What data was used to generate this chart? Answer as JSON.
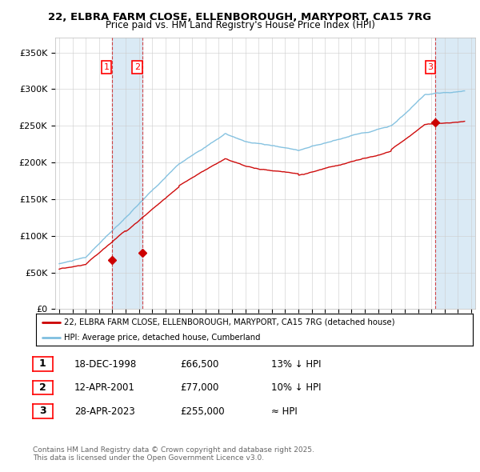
{
  "title_line1": "22, ELBRA FARM CLOSE, ELLENBOROUGH, MARYPORT, CA15 7RG",
  "title_line2": "Price paid vs. HM Land Registry's House Price Index (HPI)",
  "ylim": [
    0,
    370000
  ],
  "yticks": [
    0,
    50000,
    100000,
    150000,
    200000,
    250000,
    300000,
    350000
  ],
  "ytick_labels": [
    "£0",
    "£50K",
    "£100K",
    "£150K",
    "£200K",
    "£250K",
    "£300K",
    "£350K"
  ],
  "xlim_start": 1994.7,
  "xlim_end": 2026.3,
  "sale_dates": [
    1998.96,
    2001.28,
    2023.32
  ],
  "sale_prices": [
    66500,
    77000,
    255000
  ],
  "sale_labels": [
    "1",
    "2",
    "3"
  ],
  "legend_line1": "22, ELBRA FARM CLOSE, ELLENBOROUGH, MARYPORT, CA15 7RG (detached house)",
  "legend_line2": "HPI: Average price, detached house, Cumberland",
  "table_data": [
    [
      "1",
      "18-DEC-1998",
      "£66,500",
      "13% ↓ HPI"
    ],
    [
      "2",
      "12-APR-2001",
      "£77,000",
      "10% ↓ HPI"
    ],
    [
      "3",
      "28-APR-2023",
      "£255,000",
      "≈ HPI"
    ]
  ],
  "footnote": "Contains HM Land Registry data © Crown copyright and database right 2025.\nThis data is licensed under the Open Government Licence v3.0.",
  "hpi_color": "#7fbfdf",
  "price_color": "#cc0000",
  "vline_color": "#cc0000",
  "shade_color": "#daeaf5",
  "background_color": "#ffffff",
  "grid_color": "#cccccc"
}
